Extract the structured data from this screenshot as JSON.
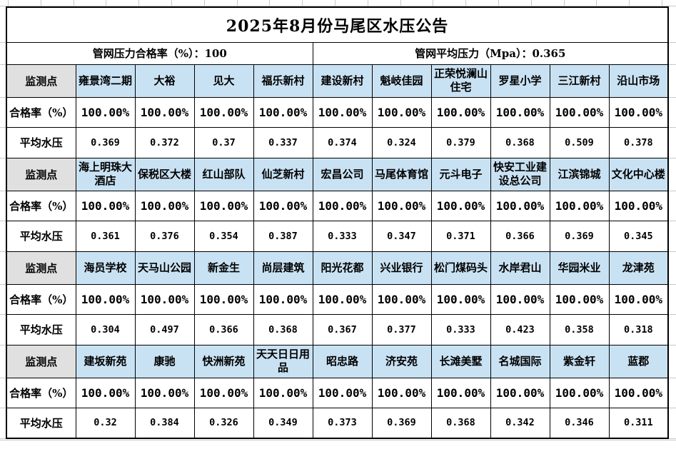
{
  "title": "2025年8月份马尾区水压公告",
  "summary": {
    "rate_label": "管网压力合格率（%）：100",
    "pressure_label": "管网平均压力（Mpa）：0.365"
  },
  "row_labels": {
    "site": "监测点",
    "rate": "合格率（%）",
    "pressure": "平均水压"
  },
  "blocks": [
    {
      "sites": [
        "雍景湾二期",
        "大裕",
        "见大",
        "福乐新村",
        "建设新村",
        "魁岐佳园",
        "正荣悦澜山住宅",
        "罗星小学",
        "三江新村",
        "沿山市场"
      ],
      "rates": [
        "100.00%",
        "100.00%",
        "100.00%",
        "100.00%",
        "100.00%",
        "100.00%",
        "100.00%",
        "100.00%",
        "100.00%",
        "100.00%"
      ],
      "pressures": [
        "0.369",
        "0.372",
        "0.37",
        "0.337",
        "0.374",
        "0.324",
        "0.379",
        "0.368",
        "0.509",
        "0.378"
      ]
    },
    {
      "sites": [
        "海上明珠大酒店",
        "保税区大楼",
        "红山部队",
        "仙芝新村",
        "宏昌公司",
        "马尾体育馆",
        "元斗电子",
        "快安工业建设总公司",
        "江滨锦城",
        "文化中心楼"
      ],
      "rates": [
        "100.00%",
        "100.00%",
        "100.00%",
        "100.00%",
        "100.00%",
        "100.00%",
        "100.00%",
        "100.00%",
        "100.00%",
        "100.00%"
      ],
      "pressures": [
        "0.361",
        "0.376",
        "0.354",
        "0.387",
        "0.333",
        "0.347",
        "0.371",
        "0.366",
        "0.369",
        "0.345"
      ]
    },
    {
      "sites": [
        "海员学校",
        "天马山公园",
        "新金生",
        "尚层建筑",
        "阳光花都",
        "兴业银行",
        "松门煤码头",
        "水岸君山",
        "华园米业",
        "龙津苑"
      ],
      "rates": [
        "100.00%",
        "100.00%",
        "100.00%",
        "100.00%",
        "100.00%",
        "100.00%",
        "100.00%",
        "100.00%",
        "100.00%",
        "100.00%"
      ],
      "pressures": [
        "0.304",
        "0.497",
        "0.366",
        "0.368",
        "0.367",
        "0.377",
        "0.333",
        "0.423",
        "0.358",
        "0.318"
      ]
    },
    {
      "sites": [
        "建坂新苑",
        "康驰",
        "快洲新苑",
        "天天日日用品",
        "昭忠路",
        "济安苑",
        "长滩美墅",
        "名城国际",
        "紫金轩",
        "蓝郡"
      ],
      "rates": [
        "100.00%",
        "100.00%",
        "100.00%",
        "100.00%",
        "100.00%",
        "100.00%",
        "100.00%",
        "100.00%",
        "100.00%",
        "100.00%"
      ],
      "pressures": [
        "0.32",
        "0.384",
        "0.326",
        "0.349",
        "0.373",
        "0.369",
        "0.368",
        "0.342",
        "0.346",
        "0.311"
      ]
    }
  ],
  "colors": {
    "site_fill": "#c9e2f3",
    "label_fill": "#e0e0e0",
    "table_border": "#000000",
    "sheet_gridline": "#c9c9c9",
    "text": "#000000"
  }
}
